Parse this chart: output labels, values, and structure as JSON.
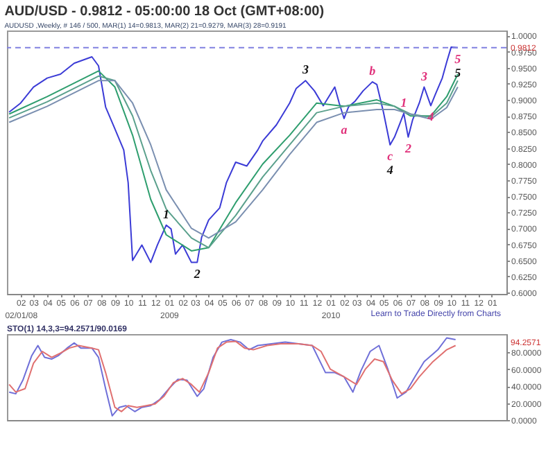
{
  "chart_data": [
    {
      "type": "line",
      "title": "AUD/USD - 0.9812 - 05:00:00  18 Oct (GMT+08:00)",
      "subtitle": "AUDUSD ,Weekly, # 146 / 500, MAR(1) 14=0.9813, MAR(2) 21=0.9279, MAR(3) 28=0.9191",
      "xlim": [
        "2008-01-01",
        "2011-02-03"
      ],
      "xticks": [
        {
          "value": "2008-02-01",
          "label": "02\n02/01/08"
        },
        {
          "value": "2008-03-01",
          "label": "03"
        },
        {
          "value": "2008-04-01",
          "label": "04"
        },
        {
          "value": "2008-05-01",
          "label": "05"
        },
        {
          "value": "2008-06-01",
          "label": "06"
        },
        {
          "value": "2008-07-01",
          "label": "07"
        },
        {
          "value": "2008-08-01",
          "label": "08"
        },
        {
          "value": "2008-09-01",
          "label": "09"
        },
        {
          "value": "2008-10-01",
          "label": "10"
        },
        {
          "value": "2008-11-01",
          "label": "11"
        },
        {
          "value": "2008-12-01",
          "label": "12"
        },
        {
          "value": "2009-01-01",
          "label": "01\n2009"
        },
        {
          "value": "2009-02-01",
          "label": "02"
        },
        {
          "value": "2009-03-01",
          "label": "03"
        },
        {
          "value": "2009-04-01",
          "label": "04"
        },
        {
          "value": "2009-05-01",
          "label": "05"
        },
        {
          "value": "2009-06-01",
          "label": "06"
        },
        {
          "value": "2009-07-01",
          "label": "07"
        },
        {
          "value": "2009-08-01",
          "label": "08"
        },
        {
          "value": "2009-09-01",
          "label": "09"
        },
        {
          "value": "2009-10-01",
          "label": "10"
        },
        {
          "value": "2009-11-01",
          "label": "11"
        },
        {
          "value": "2009-12-01",
          "label": "12"
        },
        {
          "value": "2010-01-01",
          "label": "01\n2010"
        },
        {
          "value": "2010-02-01",
          "label": "02"
        },
        {
          "value": "2010-03-01",
          "label": "03"
        },
        {
          "value": "2010-04-01",
          "label": "04"
        },
        {
          "value": "2010-05-01",
          "label": "05"
        },
        {
          "value": "2010-06-01",
          "label": "06"
        },
        {
          "value": "2010-07-01",
          "label": "07"
        },
        {
          "value": "2010-08-01",
          "label": "08"
        },
        {
          "value": "2010-09-01",
          "label": "09"
        },
        {
          "value": "2010-10-01",
          "label": "10"
        },
        {
          "value": "2010-11-01",
          "label": "11"
        },
        {
          "value": "2010-12-01",
          "label": "12"
        },
        {
          "value": "2011-01-01",
          "label": "01"
        }
      ],
      "ylim": [
        0.598,
        1.008
      ],
      "yticks": [
        {
          "value": 0.6,
          "label": "0.6000"
        },
        {
          "value": 0.625,
          "label": "0.6250"
        },
        {
          "value": 0.65,
          "label": "0.6500"
        },
        {
          "value": 0.675,
          "label": "0.6750"
        },
        {
          "value": 0.7,
          "label": "0.7000"
        },
        {
          "value": 0.725,
          "label": "0.7250"
        },
        {
          "value": 0.75,
          "label": "0.7500"
        },
        {
          "value": 0.775,
          "label": "0.7750"
        },
        {
          "value": 0.8,
          "label": "0.8000"
        },
        {
          "value": 0.825,
          "label": "0.8250"
        },
        {
          "value": 0.85,
          "label": "0.8500"
        },
        {
          "value": 0.875,
          "label": "0.8750"
        },
        {
          "value": 0.9,
          "label": "0.9000"
        },
        {
          "value": 0.925,
          "label": "0.9250"
        },
        {
          "value": 0.95,
          "label": "0.9500"
        },
        {
          "value": 0.975,
          "label": "0.9750"
        },
        {
          "value": 1.0,
          "label": "1.0000"
        }
      ],
      "grid": false,
      "series": [
        {
          "color": "#3b3bd6",
          "x": [
            "2008-01-06",
            "2008-02-01",
            "2008-03-01",
            "2008-04-01",
            "2008-05-01",
            "2008-06-01",
            "2008-07-11",
            "2008-07-26",
            "2008-08-11",
            "2008-09-01",
            "2008-09-21",
            "2008-10-01",
            "2008-10-11",
            "2008-11-01",
            "2008-11-21",
            "2008-12-06",
            "2008-12-26",
            "2009-01-06",
            "2009-01-16",
            "2009-02-01",
            "2009-02-21",
            "2009-03-06",
            "2009-03-16",
            "2009-04-01",
            "2009-04-26",
            "2009-05-11",
            "2009-06-01",
            "2009-06-26",
            "2009-07-21",
            "2009-08-01",
            "2009-09-01",
            "2009-10-01",
            "2009-10-16",
            "2009-11-06",
            "2009-11-26",
            "2009-12-16",
            "2010-01-11",
            "2010-01-21",
            "2010-02-01",
            "2010-02-11",
            "2010-02-26",
            "2010-03-16",
            "2010-04-06",
            "2010-04-16",
            "2010-05-01",
            "2010-05-16",
            "2010-05-26",
            "2010-06-06",
            "2010-06-16",
            "2010-06-26",
            "2010-07-06",
            "2010-07-21",
            "2010-08-01",
            "2010-08-16",
            "2010-08-26",
            "2010-09-11",
            "2010-09-21",
            "2010-10-01",
            "2010-10-16"
          ],
          "values": [
            0.881,
            0.895,
            0.92,
            0.934,
            0.94,
            0.957,
            0.967,
            0.953,
            0.889,
            0.855,
            0.822,
            0.771,
            0.65,
            0.674,
            0.647,
            0.674,
            0.705,
            0.699,
            0.66,
            0.674,
            0.647,
            0.647,
            0.686,
            0.713,
            0.732,
            0.771,
            0.803,
            0.797,
            0.822,
            0.836,
            0.861,
            0.895,
            0.918,
            0.93,
            0.914,
            0.891,
            0.92,
            0.895,
            0.871,
            0.889,
            0.898,
            0.914,
            0.928,
            0.924,
            0.881,
            0.83,
            0.842,
            0.861,
            0.879,
            0.842,
            0.869,
            0.895,
            0.92,
            0.891,
            0.908,
            0.934,
            0.959,
            0.982,
            0.9812
          ]
        },
        {
          "color": "#2e9e6e",
          "x": [
            "2008-01-06",
            "2008-04-01",
            "2008-07-26",
            "2008-09-01",
            "2008-10-11",
            "2008-11-21",
            "2008-12-26",
            "2009-02-21",
            "2009-04-01",
            "2009-06-01",
            "2009-08-01",
            "2009-10-01",
            "2009-12-01",
            "2010-02-01",
            "2010-04-16",
            "2010-05-26",
            "2010-07-01",
            "2010-08-16",
            "2010-09-21",
            "2010-10-16"
          ],
          "values": [
            0.878,
            0.905,
            0.945,
            0.92,
            0.845,
            0.745,
            0.69,
            0.665,
            0.67,
            0.74,
            0.8,
            0.845,
            0.895,
            0.89,
            0.9,
            0.89,
            0.875,
            0.875,
            0.905,
            0.94
          ]
        },
        {
          "color": "#5aa08c",
          "x": [
            "2008-01-06",
            "2008-04-01",
            "2008-07-26",
            "2008-09-01",
            "2008-10-11",
            "2008-11-21",
            "2008-12-26",
            "2009-02-21",
            "2009-04-01",
            "2009-06-01",
            "2009-08-01",
            "2009-10-01",
            "2009-12-01",
            "2010-02-01",
            "2010-04-16",
            "2010-05-26",
            "2010-07-01",
            "2010-08-16",
            "2010-09-21",
            "2010-10-16"
          ],
          "values": [
            0.872,
            0.897,
            0.937,
            0.93,
            0.875,
            0.79,
            0.73,
            0.685,
            0.67,
            0.72,
            0.78,
            0.83,
            0.88,
            0.89,
            0.895,
            0.89,
            0.878,
            0.873,
            0.895,
            0.93
          ]
        },
        {
          "color": "#7a8fb0",
          "x": [
            "2008-01-06",
            "2008-04-01",
            "2008-07-26",
            "2008-09-01",
            "2008-10-11",
            "2008-11-21",
            "2008-12-26",
            "2009-02-21",
            "2009-04-01",
            "2009-06-01",
            "2009-08-01",
            "2009-10-01",
            "2009-12-01",
            "2010-02-01",
            "2010-04-16",
            "2010-05-26",
            "2010-07-01",
            "2010-08-16",
            "2010-09-21",
            "2010-10-16"
          ],
          "values": [
            0.865,
            0.89,
            0.93,
            0.93,
            0.895,
            0.83,
            0.76,
            0.7,
            0.685,
            0.71,
            0.76,
            0.815,
            0.865,
            0.88,
            0.885,
            0.885,
            0.878,
            0.87,
            0.888,
            0.92
          ]
        }
      ],
      "ref_lines": [
        {
          "axis": "y",
          "value": 0.9812,
          "label": "0.9812",
          "color": "#8080e0",
          "line_style": "dashed"
        }
      ],
      "annotations": [
        {
          "text": "1",
          "x": "2008-12-26",
          "y": 0.705
        },
        {
          "text": "2",
          "x": "2009-03-06",
          "y": 0.647
        },
        {
          "text": "3",
          "x": "2009-11-06",
          "y": 0.93
        },
        {
          "text": "5",
          "x": "2010-10-16",
          "y": 0.9812
        },
        {
          "text": "5",
          "x": "2010-10-16",
          "y": 0.9812
        },
        {
          "text": "1",
          "x": "2010-06-16",
          "y": 0.879
        },
        {
          "text": "2",
          "x": "2010-06-26",
          "y": 0.842
        },
        {
          "text": "3",
          "x": "2010-08-01",
          "y": 0.92
        },
        {
          "text": "4",
          "x": "2010-08-16",
          "y": 0.891
        },
        {
          "text": "a",
          "x": "2010-02-01",
          "y": 0.871
        },
        {
          "text": "b",
          "x": "2010-04-06",
          "y": 0.928
        },
        {
          "text": "c",
          "x": "2010-05-16",
          "y": 0.83
        },
        {
          "text": "4",
          "x": "2010-05-16",
          "y": 0.83
        },
        "Learn to Trade Directly from Charts"
      ]
    },
    {
      "type": "line",
      "title": "STO(1) 14,3,3=94.2571/90.0169",
      "xlim": [
        "2008-01-01",
        "2011-02-03"
      ],
      "ylim": [
        0,
        101.5
      ],
      "yticks": [
        {
          "value": 0,
          "label": "0.0000"
        },
        {
          "value": 20,
          "label": "20.0000"
        },
        {
          "value": 40,
          "label": "40.0000"
        },
        {
          "value": 60,
          "label": "60.0000"
        },
        {
          "value": 80,
          "label": "80.0000"
        }
      ],
      "tick_labels": "y",
      "grid": false,
      "series": [
        {
          "color": "#6f6fd8",
          "x": [
            "2008-01-06",
            "2008-01-21",
            "2008-02-06",
            "2008-02-26",
            "2008-03-11",
            "2008-03-26",
            "2008-04-11",
            "2008-04-26",
            "2008-05-16",
            "2008-06-01",
            "2008-06-16",
            "2008-07-11",
            "2008-07-26",
            "2008-08-11",
            "2008-08-26",
            "2008-09-11",
            "2008-09-26",
            "2008-10-16",
            "2008-11-01",
            "2008-11-21",
            "2008-12-11",
            "2009-01-01",
            "2009-01-21",
            "2009-02-11",
            "2009-03-06",
            "2009-03-21",
            "2009-04-11",
            "2009-05-01",
            "2009-05-21",
            "2009-06-11",
            "2009-07-01",
            "2009-07-21",
            "2009-08-21",
            "2009-09-21",
            "2009-10-21",
            "2009-11-21",
            "2009-12-21",
            "2010-01-11",
            "2010-02-01",
            "2010-02-21",
            "2010-03-11",
            "2010-04-01",
            "2010-04-21",
            "2010-05-11",
            "2010-06-01",
            "2010-06-21",
            "2010-07-11",
            "2010-08-01",
            "2010-09-01",
            "2010-09-21",
            "2010-10-11"
          ],
          "values": [
            33,
            31,
            47,
            76,
            88,
            74,
            72,
            76,
            85,
            91,
            85,
            85,
            74,
            37,
            5,
            15,
            17,
            10,
            15,
            17,
            24,
            37,
            48,
            47,
            28,
            37,
            74,
            92,
            95,
            92,
            83,
            88,
            90,
            92,
            90,
            88,
            56,
            56,
            51,
            33,
            58,
            81,
            88,
            60,
            26,
            33,
            51,
            69,
            83,
            97,
            95
          ]
        },
        {
          "color": "#e07070",
          "x": [
            "2008-01-06",
            "2008-01-21",
            "2008-02-11",
            "2008-03-01",
            "2008-03-21",
            "2008-04-11",
            "2008-05-01",
            "2008-05-21",
            "2008-06-11",
            "2008-07-11",
            "2008-07-26",
            "2008-08-11",
            "2008-09-01",
            "2008-09-16",
            "2008-10-01",
            "2008-10-21",
            "2008-11-11",
            "2008-12-01",
            "2008-12-21",
            "2009-01-11",
            "2009-02-01",
            "2009-02-21",
            "2009-03-11",
            "2009-04-01",
            "2009-04-21",
            "2009-05-11",
            "2009-06-01",
            "2009-06-21",
            "2009-07-11",
            "2009-08-11",
            "2009-09-11",
            "2009-10-21",
            "2009-11-21",
            "2009-12-11",
            "2010-01-01",
            "2010-02-01",
            "2010-03-01",
            "2010-03-21",
            "2010-04-11",
            "2010-05-01",
            "2010-05-21",
            "2010-06-11",
            "2010-07-01",
            "2010-07-21",
            "2010-08-21",
            "2010-09-21",
            "2010-10-11"
          ],
          "values": [
            42,
            33,
            37,
            67,
            81,
            74,
            79,
            85,
            88,
            85,
            83,
            56,
            15,
            10,
            17,
            15,
            17,
            19,
            28,
            44,
            49,
            42,
            33,
            56,
            85,
            92,
            93,
            85,
            83,
            88,
            90,
            90,
            88,
            81,
            60,
            51,
            42,
            60,
            72,
            69,
            47,
            31,
            37,
            51,
            69,
            83,
            88
          ]
        }
      ],
      "annotations": [
        "94.2571"
      ]
    }
  ]
}
